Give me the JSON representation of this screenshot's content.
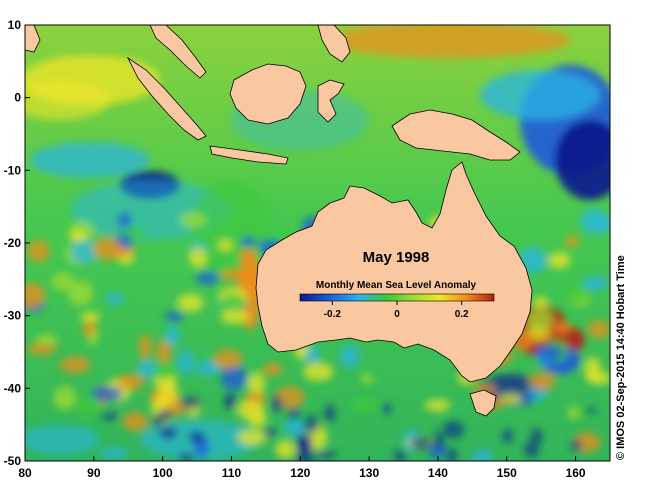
{
  "map": {
    "title": "May 1998",
    "region": {
      "lon_min": 80,
      "lon_max": 165,
      "lat_min": -50,
      "lat_max": 10
    },
    "x_ticks": [
      "80",
      "90",
      "100",
      "110",
      "120",
      "130",
      "140",
      "150",
      "160"
    ],
    "y_ticks": [
      "10",
      "0",
      "-10",
      "-20",
      "-30",
      "-40",
      "-50"
    ],
    "land_color": "#f9c8a0",
    "colorbar": {
      "title": "Monthly Mean Sea Level Anomaly",
      "ticks": [
        "-0.2",
        "0",
        "0.2"
      ],
      "range": [
        -0.3,
        0.3
      ],
      "colors": [
        "#0a1a8c",
        "#1e5adc",
        "#28b4e6",
        "#3cc83c",
        "#a0dc32",
        "#f0e628",
        "#f08c1e",
        "#b41e14"
      ]
    },
    "credit": "© IMOS 02-Sep-2015 14:40 Hobart Time"
  }
}
